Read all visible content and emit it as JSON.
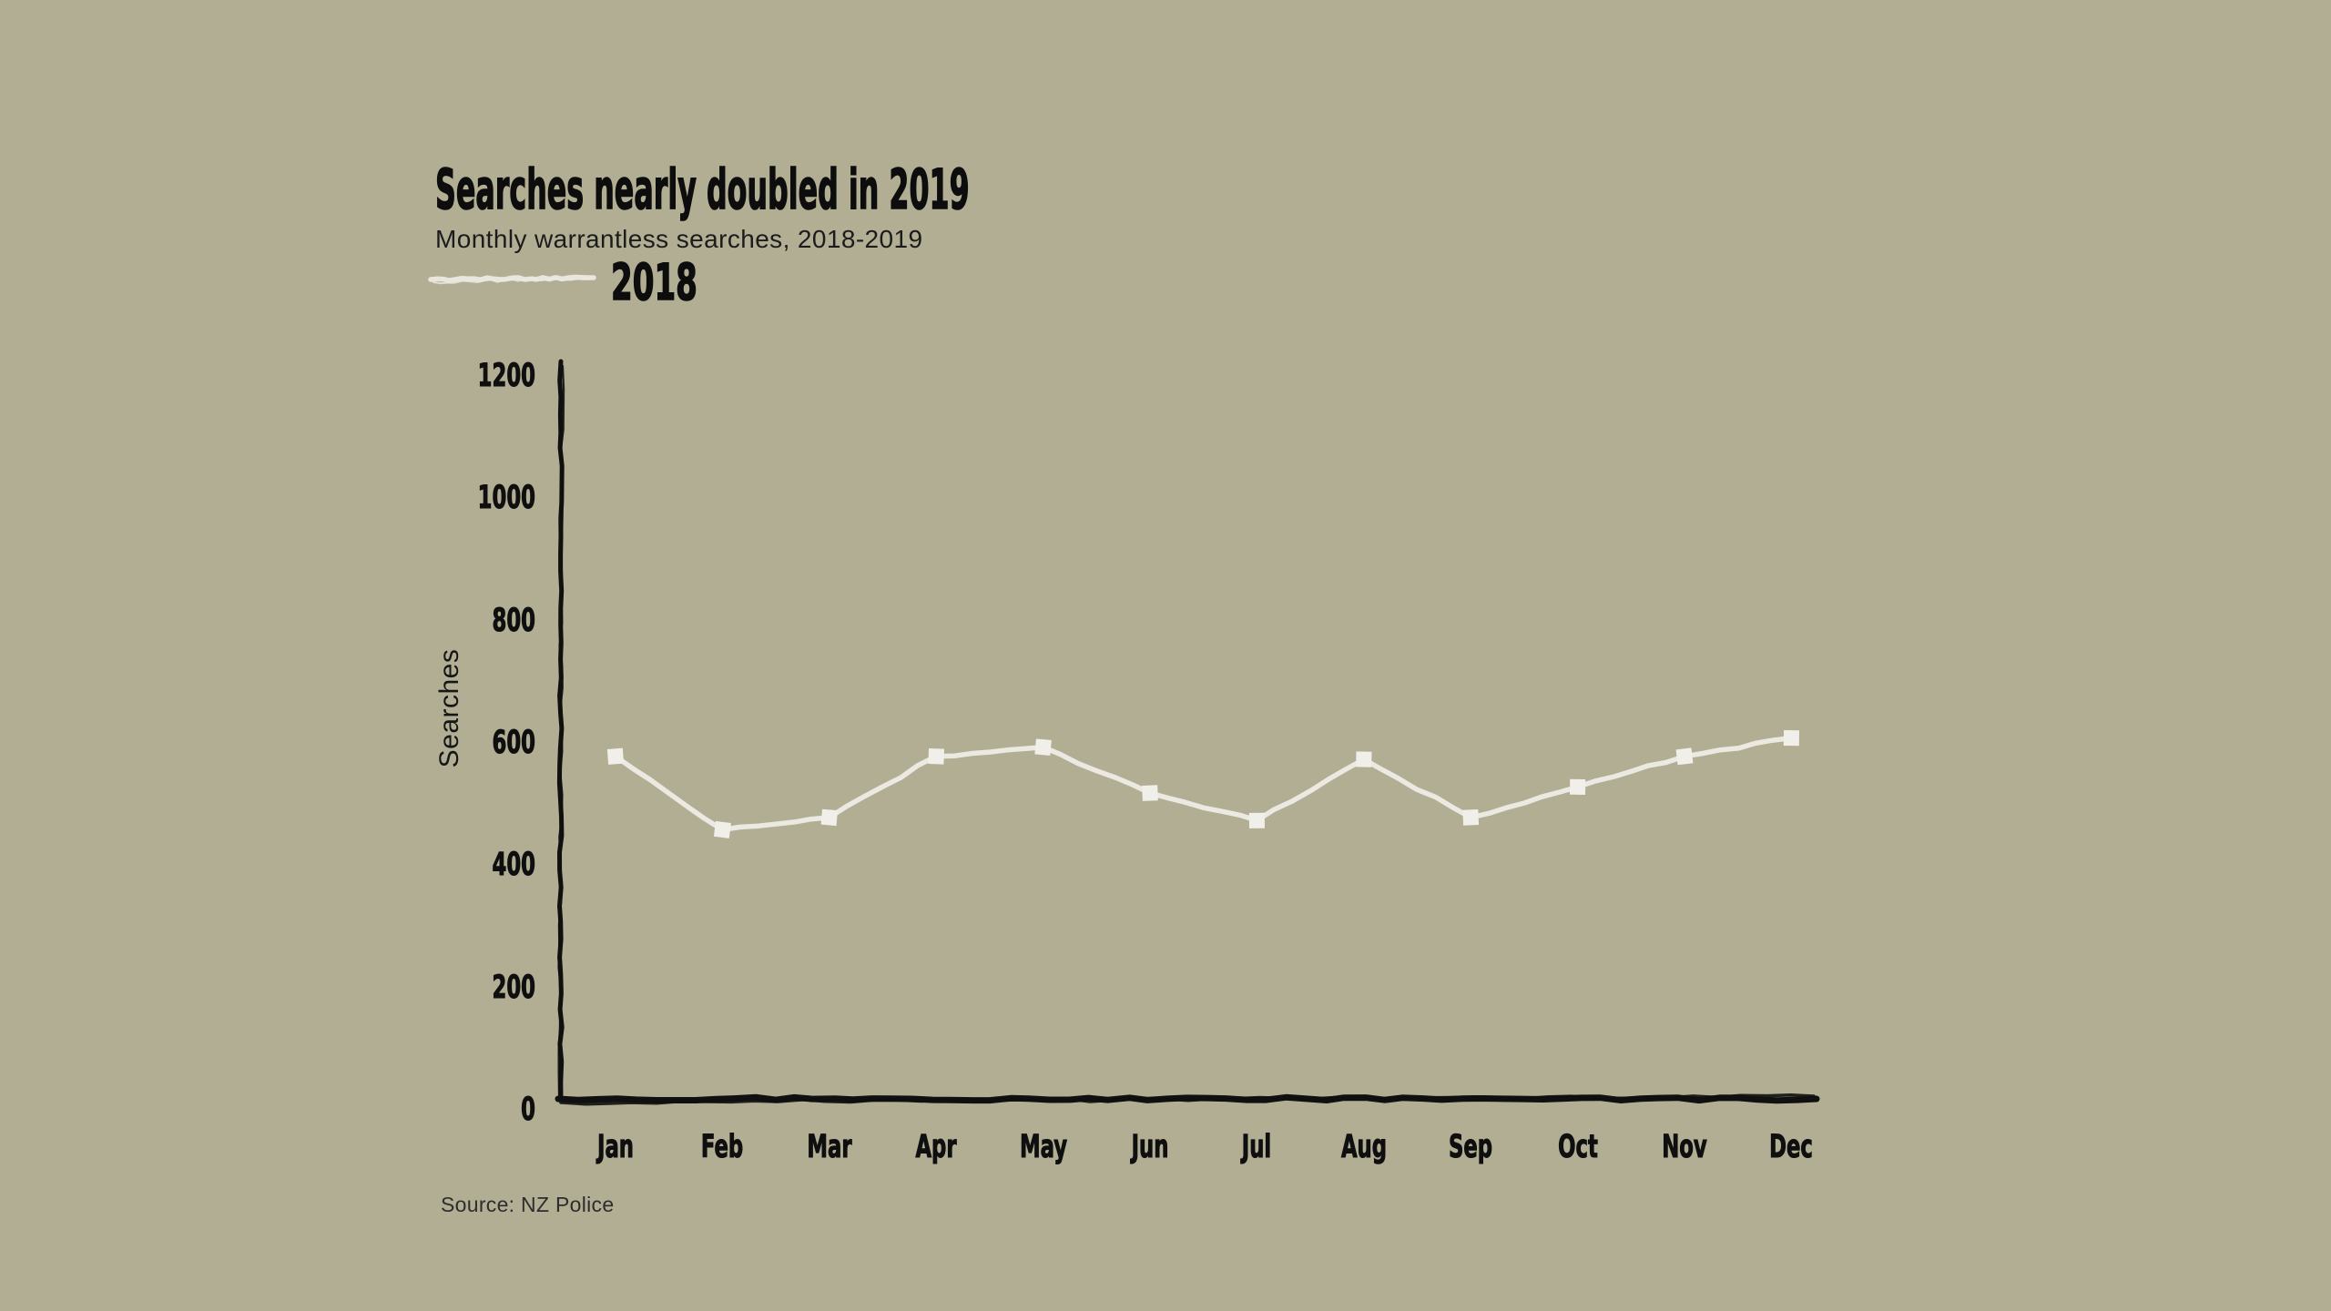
{
  "page": {
    "background_color": "#b1ae93",
    "text_color": "#0d0d0d",
    "axis_color": "#101010"
  },
  "header": {
    "title": "Searches nearly doubled in 2019",
    "subtitle": "Monthly warrantless searches, 2018-2019"
  },
  "legend": {
    "position": "top-left",
    "swatch": "sketchy-line",
    "swatch_color": "#ece9e2"
  },
  "source_note": "Source: NZ Police",
  "chart_data": {
    "type": "line",
    "style": "xkcd-sketch",
    "title": "Searches nearly doubled in 2019",
    "subtitle": "Monthly warrantless searches, 2018-2019",
    "xlabel": "",
    "ylabel": "Searches",
    "categories": [
      "Jan",
      "Feb",
      "Mar",
      "Apr",
      "May",
      "Jun",
      "Jul",
      "Aug",
      "Sep",
      "Oct",
      "Nov",
      "Dec"
    ],
    "series": [
      {
        "name": "2018",
        "color": "#ece9e2",
        "marker": "square",
        "values": [
          575,
          455,
          475,
          575,
          590,
          515,
          470,
          570,
          475,
          525,
          575,
          605
        ]
      }
    ],
    "ylim": [
      0,
      1200
    ],
    "yticks": [
      0,
      200,
      400,
      600,
      800,
      1000,
      1200
    ],
    "grid": false,
    "legend_position": "top-left"
  }
}
